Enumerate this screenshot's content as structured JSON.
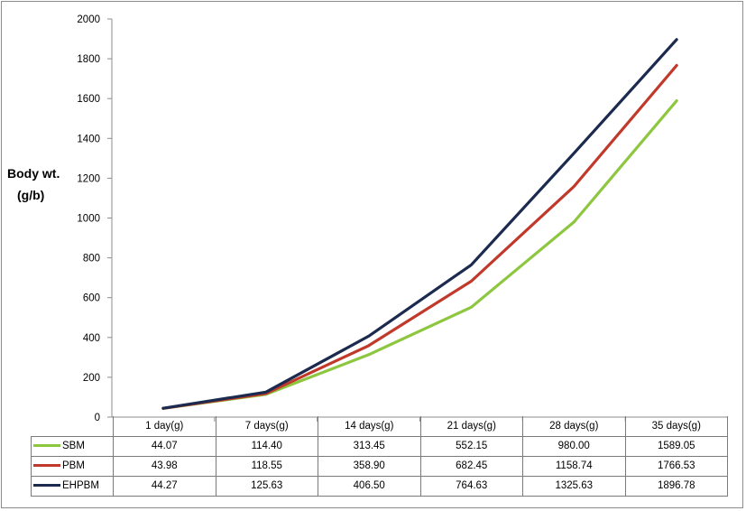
{
  "chart_data": {
    "type": "line",
    "ylabel_line1": "Body wt.",
    "ylabel_line2": "(g/b)",
    "ylim": [
      0,
      2000
    ],
    "yticks": [
      "0",
      "200",
      "400",
      "600",
      "800",
      "1000",
      "1200",
      "1400",
      "1600",
      "1800",
      "2000"
    ],
    "categories": [
      "1 day(g)",
      "7 days(g)",
      "14 days(g)",
      "21 days(g)",
      "28 days(g)",
      "35 days(g)"
    ],
    "grid": false,
    "legend": "data-table",
    "series": [
      {
        "name": "SBM",
        "color": "#8dc63f",
        "values": [
          44.07,
          114.4,
          313.45,
          552.15,
          980.0,
          1589.05
        ],
        "labels": [
          "44.07",
          "114.40",
          "313.45",
          "552.15",
          "980.00",
          "1589.05"
        ]
      },
      {
        "name": "PBM",
        "color": "#c0392b",
        "values": [
          43.98,
          118.55,
          358.9,
          682.45,
          1158.74,
          1766.53
        ],
        "labels": [
          "43.98",
          "118.55",
          "358.90",
          "682.45",
          "1158.74",
          "1766.53"
        ]
      },
      {
        "name": "EHPBM",
        "color": "#1b2a4e",
        "values": [
          44.27,
          125.63,
          406.5,
          764.63,
          1325.63,
          1896.78
        ],
        "labels": [
          "44.27",
          "125.63",
          "406.50",
          "764.63",
          "1325.63",
          "1896.78"
        ]
      }
    ]
  }
}
